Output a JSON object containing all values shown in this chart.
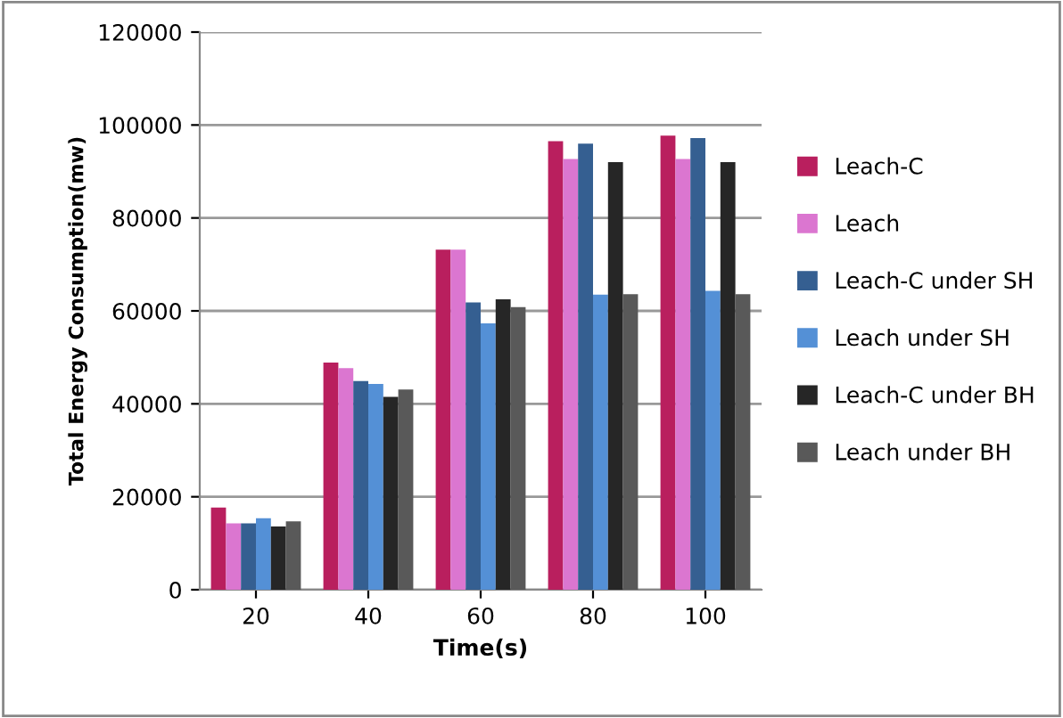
{
  "chart_data": {
    "type": "bar",
    "xlabel": "Time(s)",
    "ylabel": "Total Energy Consumption(mw)",
    "categories": [
      "20",
      "40",
      "60",
      "80",
      "100"
    ],
    "series": [
      {
        "name": "Leach-C",
        "color": "#b91f5e",
        "values": [
          17700,
          48900,
          73200,
          96500,
          97700
        ]
      },
      {
        "name": "Leach",
        "color": "#db76d0",
        "values": [
          14300,
          47700,
          73200,
          92700,
          92700
        ]
      },
      {
        "name": "Leach-C under SH",
        "color": "#355f91",
        "values": [
          14300,
          44900,
          61800,
          96000,
          97200
        ]
      },
      {
        "name": "Leach under SH",
        "color": "#5490d6",
        "values": [
          15400,
          44300,
          57300,
          63500,
          64300
        ]
      },
      {
        "name": "Leach-C under BH",
        "color": "#262626",
        "values": [
          13600,
          41500,
          62500,
          92000,
          92000
        ]
      },
      {
        "name": "Leach under BH",
        "color": "#595959",
        "values": [
          14700,
          43100,
          60800,
          63600,
          63600
        ]
      }
    ],
    "ylim": [
      0,
      120000
    ],
    "yticks": [
      0,
      20000,
      40000,
      60000,
      80000,
      100000,
      120000
    ],
    "grid": "y",
    "legend": "right"
  }
}
